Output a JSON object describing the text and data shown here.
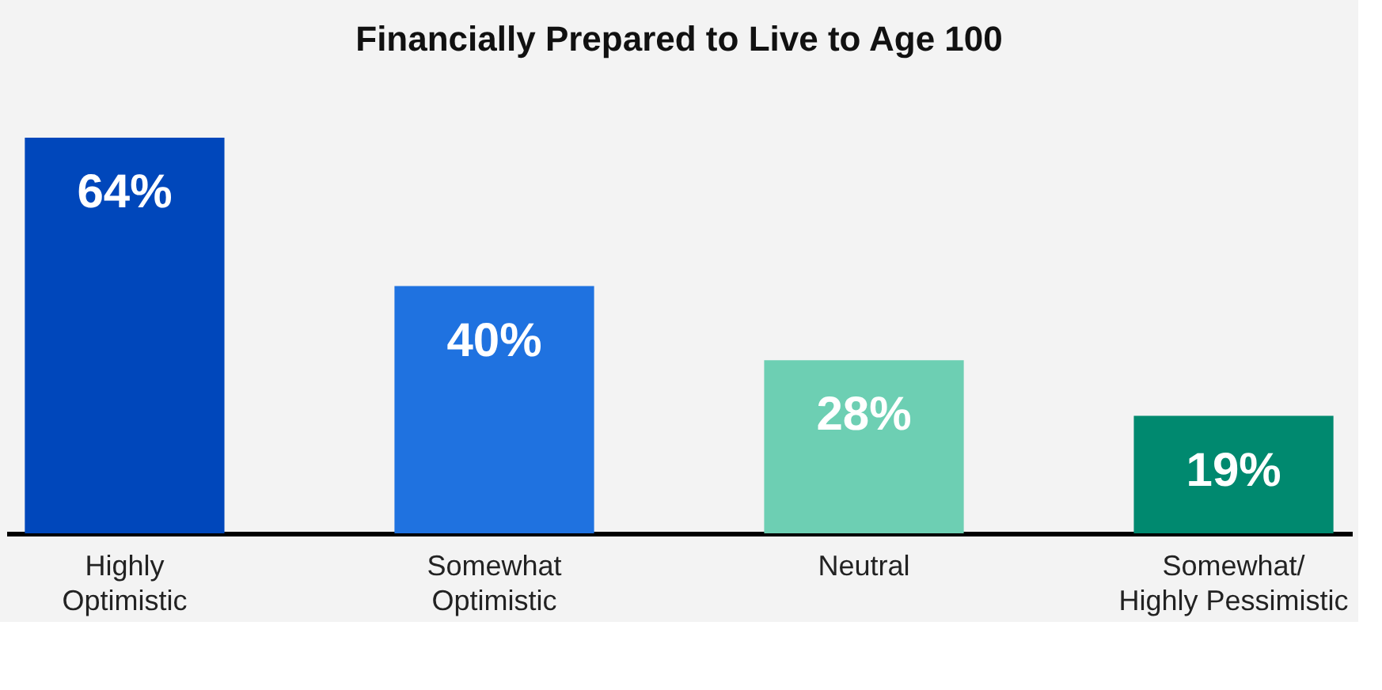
{
  "chart_data": {
    "type": "bar",
    "title": "Financially Prepared to Live to Age 100",
    "categories": [
      "Highly Optimistic",
      "Somewhat Optimistic",
      "Neutral",
      "Somewhat/ Highly Pessimistic"
    ],
    "values": [
      64,
      40,
      28,
      19
    ],
    "value_labels": [
      "64%",
      "40%",
      "28%",
      "19%"
    ],
    "colors": [
      "#0047bb",
      "#1f72e0",
      "#6dcfb3",
      "#00896f"
    ]
  }
}
